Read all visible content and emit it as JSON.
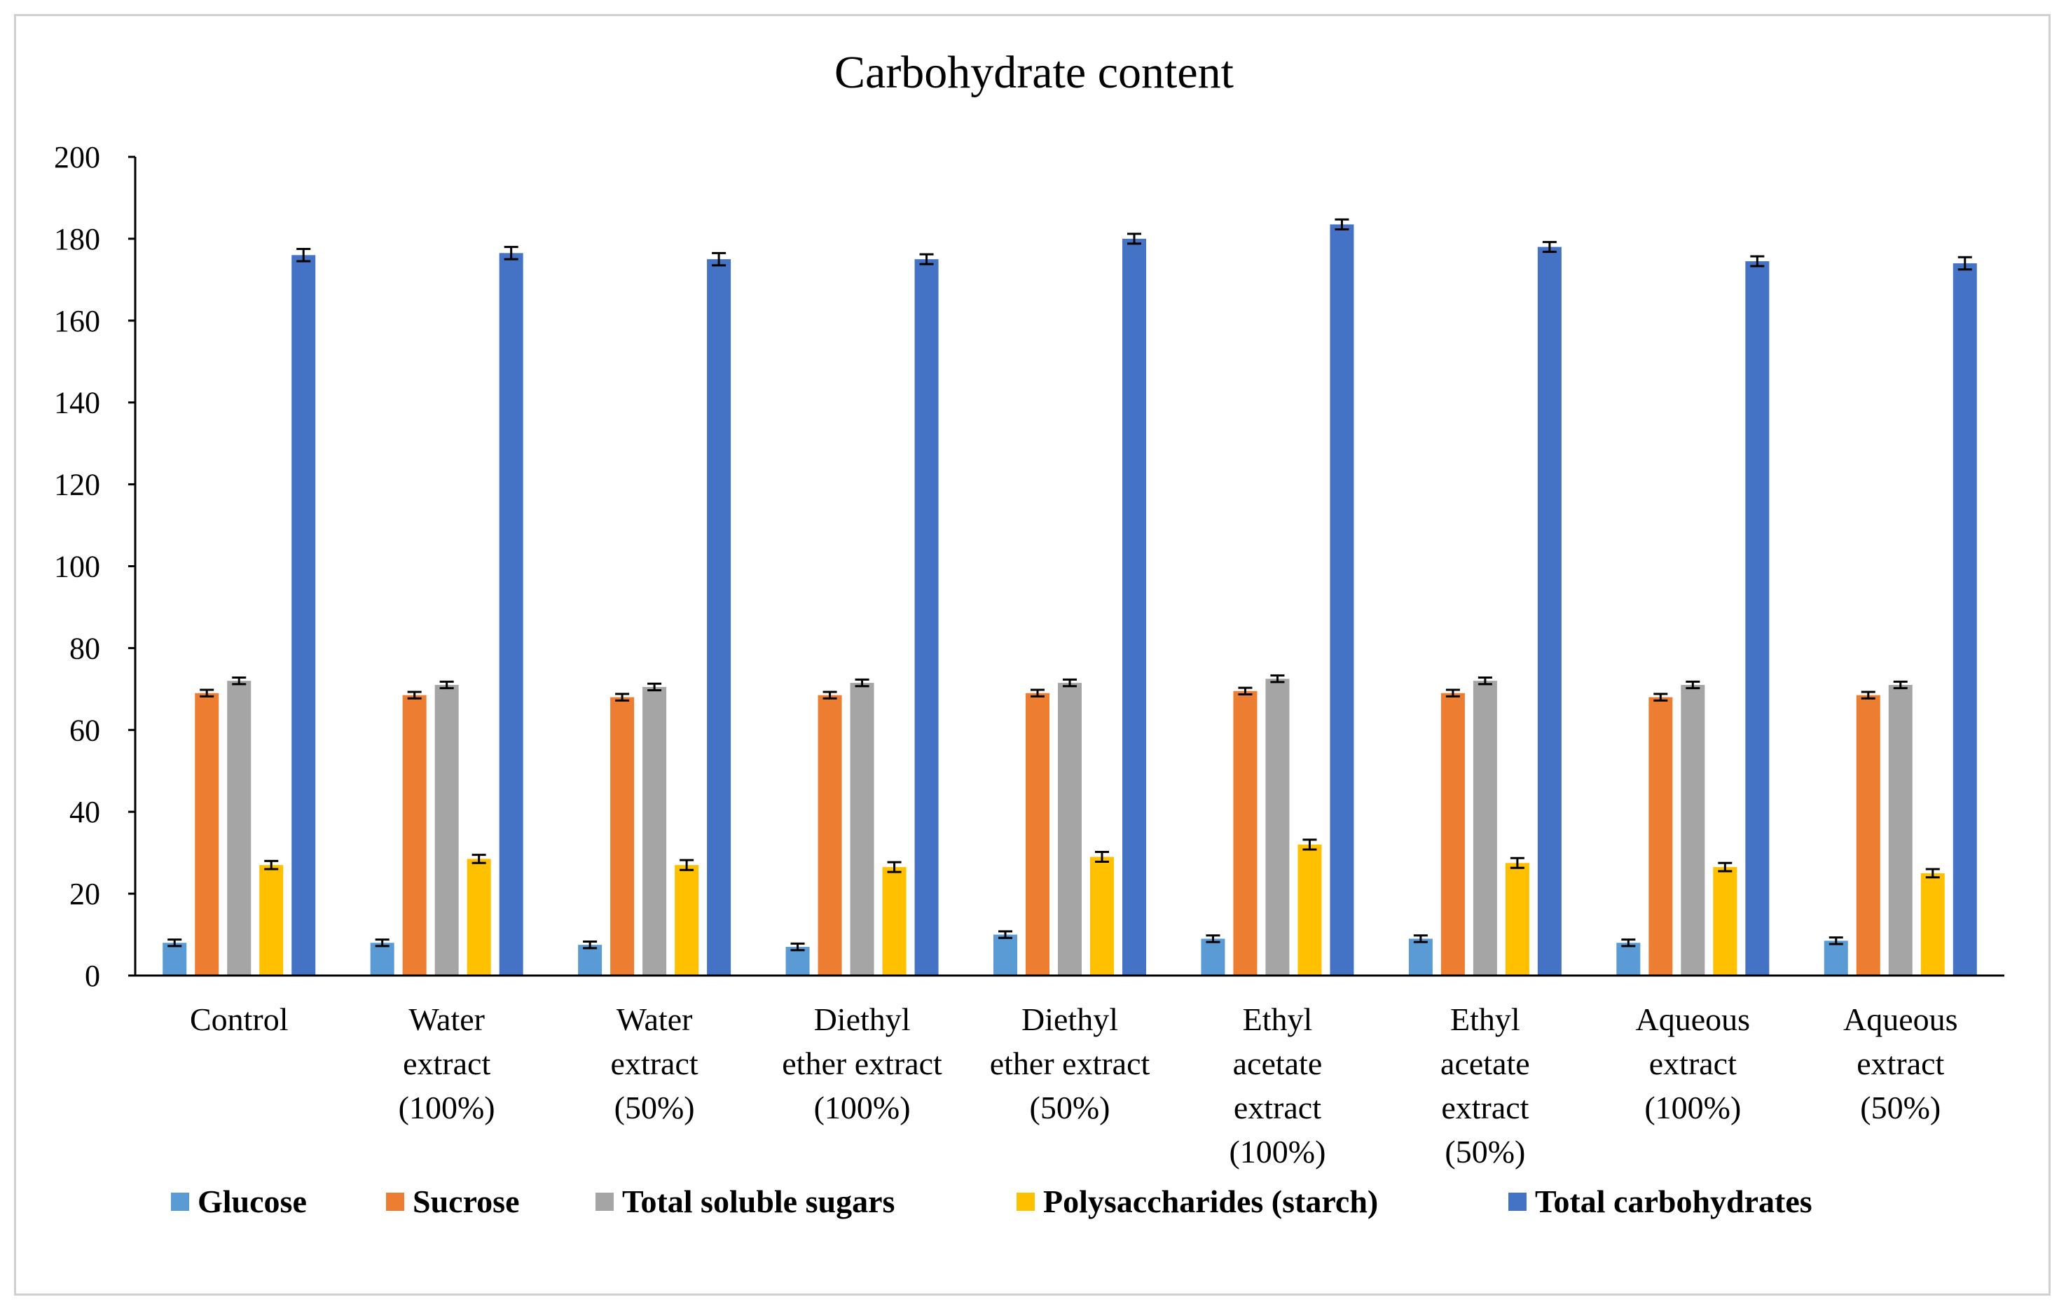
{
  "chart_data": {
    "type": "bar",
    "title": "Carbohydrate content",
    "xlabel": "",
    "ylabel": "",
    "ylim": [
      0,
      200
    ],
    "yticks": [
      0,
      20,
      40,
      60,
      80,
      100,
      120,
      140,
      160,
      180,
      200
    ],
    "grid": false,
    "legend_position": "bottom",
    "categories": [
      [
        "Control"
      ],
      [
        "Water",
        "extract",
        "(100%)"
      ],
      [
        "Water",
        "extract",
        "(50%)"
      ],
      [
        "Diethyl",
        "ether extract",
        "(100%)"
      ],
      [
        "Diethyl",
        "ether extract",
        "(50%)"
      ],
      [
        "Ethyl",
        "acetate",
        "extract",
        "(100%)"
      ],
      [
        "Ethyl",
        "acetate",
        "extract",
        "(50%)"
      ],
      [
        "Aqueous",
        "extract",
        "(100%)"
      ],
      [
        "Aqueous",
        "extract",
        "(50%)"
      ]
    ],
    "series": [
      {
        "name": "Glucose",
        "color": "#5B9BD5",
        "values": [
          8.0,
          8.0,
          7.5,
          7.0,
          10.0,
          9.0,
          9.0,
          8.0,
          8.5
        ],
        "errors": [
          0.8,
          0.8,
          0.8,
          0.8,
          0.8,
          0.8,
          0.8,
          0.8,
          0.8
        ]
      },
      {
        "name": "Sucrose",
        "color": "#ED7D31",
        "values": [
          69.0,
          68.5,
          68.0,
          68.5,
          69.0,
          69.5,
          69.0,
          68.0,
          68.5
        ],
        "errors": [
          0.8,
          0.8,
          0.8,
          0.8,
          0.8,
          0.8,
          0.8,
          0.8,
          0.8
        ]
      },
      {
        "name": "Total soluble sugars",
        "color": "#A5A5A5",
        "values": [
          72.0,
          71.0,
          70.5,
          71.5,
          71.5,
          72.5,
          72.0,
          71.0,
          71.0
        ],
        "errors": [
          0.8,
          0.8,
          0.8,
          0.8,
          0.8,
          0.8,
          0.8,
          0.8,
          0.8
        ]
      },
      {
        "name": "Polysaccharides (starch)",
        "color": "#FFC000",
        "values": [
          27.0,
          28.5,
          27.0,
          26.5,
          29.0,
          32.0,
          27.5,
          26.5,
          25.0
        ],
        "errors": [
          1.0,
          1.0,
          1.2,
          1.2,
          1.2,
          1.2,
          1.2,
          1.0,
          1.0
        ]
      },
      {
        "name": "Total carbohydrates",
        "color": "#4472C4",
        "values": [
          176.0,
          176.5,
          175.0,
          175.0,
          180.0,
          183.5,
          178.0,
          174.5,
          174.0
        ],
        "errors": [
          1.5,
          1.5,
          1.5,
          1.2,
          1.2,
          1.2,
          1.2,
          1.2,
          1.5
        ]
      }
    ]
  }
}
